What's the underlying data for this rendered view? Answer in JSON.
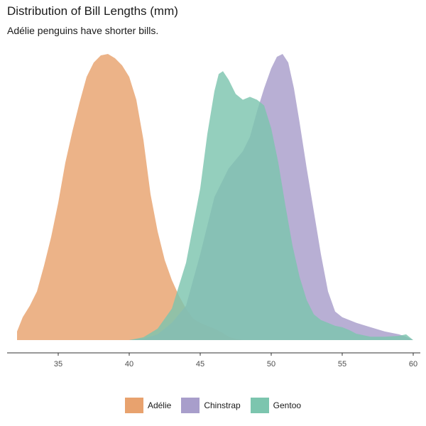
{
  "chart_data": {
    "type": "area",
    "title": "Distribution of Bill Lengths (mm)",
    "subtitle": "Adélie penguins have shorter bills.",
    "xlabel": "",
    "ylabel": "",
    "xlim": [
      31.5,
      60.5
    ],
    "ylim": [
      0,
      1
    ],
    "x_ticks": [
      35,
      40,
      45,
      50,
      55,
      60
    ],
    "grid": false,
    "legend_position": "bottom",
    "series": [
      {
        "name": "Adélie",
        "color": "#E8A26E",
        "points": [
          [
            32.1,
            0.03
          ],
          [
            32.5,
            0.08
          ],
          [
            33,
            0.12
          ],
          [
            33.5,
            0.17
          ],
          [
            34,
            0.26
          ],
          [
            34.5,
            0.36
          ],
          [
            35,
            0.48
          ],
          [
            35.5,
            0.62
          ],
          [
            36,
            0.73
          ],
          [
            36.5,
            0.83
          ],
          [
            37,
            0.92
          ],
          [
            37.5,
            0.97
          ],
          [
            38,
            0.995
          ],
          [
            38.5,
            1.0
          ],
          [
            39,
            0.985
          ],
          [
            39.5,
            0.96
          ],
          [
            40,
            0.92
          ],
          [
            40.5,
            0.84
          ],
          [
            41,
            0.7
          ],
          [
            41.5,
            0.51
          ],
          [
            42,
            0.38
          ],
          [
            42.5,
            0.28
          ],
          [
            43,
            0.21
          ],
          [
            43.5,
            0.155
          ],
          [
            44,
            0.11
          ],
          [
            44.5,
            0.075
          ],
          [
            45,
            0.06
          ],
          [
            45.5,
            0.05
          ],
          [
            46,
            0.04
          ],
          [
            46.5,
            0.028
          ],
          [
            47,
            0.012
          ],
          [
            47.5,
            0.004
          ],
          [
            48,
            0
          ]
        ]
      },
      {
        "name": "Chinstrap",
        "color": "#A89ECB",
        "points": [
          [
            40,
            0
          ],
          [
            41,
            0.005
          ],
          [
            42,
            0.02
          ],
          [
            43,
            0.06
          ],
          [
            44,
            0.12
          ],
          [
            45,
            0.3
          ],
          [
            46,
            0.5
          ],
          [
            47,
            0.6
          ],
          [
            48,
            0.66
          ],
          [
            48.5,
            0.71
          ],
          [
            49,
            0.8
          ],
          [
            49.5,
            0.88
          ],
          [
            50,
            0.95
          ],
          [
            50.4,
            0.99
          ],
          [
            50.8,
            1.0
          ],
          [
            51.2,
            0.97
          ],
          [
            51.6,
            0.88
          ],
          [
            52,
            0.76
          ],
          [
            52.5,
            0.6
          ],
          [
            53,
            0.45
          ],
          [
            53.5,
            0.3
          ],
          [
            54,
            0.17
          ],
          [
            54.5,
            0.1
          ],
          [
            55,
            0.08
          ],
          [
            55.5,
            0.07
          ],
          [
            56,
            0.06
          ],
          [
            57,
            0.045
          ],
          [
            58,
            0.03
          ],
          [
            59,
            0.02
          ],
          [
            59.5,
            0.012
          ],
          [
            60,
            0
          ]
        ]
      },
      {
        "name": "Gentoo",
        "color": "#7CC5AE",
        "points": [
          [
            40,
            0
          ],
          [
            41,
            0.01
          ],
          [
            42,
            0.04
          ],
          [
            43,
            0.11
          ],
          [
            44,
            0.27
          ],
          [
            45,
            0.53
          ],
          [
            45.5,
            0.72
          ],
          [
            46,
            0.87
          ],
          [
            46.3,
            0.93
          ],
          [
            46.6,
            0.94
          ],
          [
            47,
            0.91
          ],
          [
            47.5,
            0.86
          ],
          [
            48,
            0.84
          ],
          [
            48.5,
            0.85
          ],
          [
            49,
            0.84
          ],
          [
            49.5,
            0.82
          ],
          [
            50,
            0.74
          ],
          [
            50.5,
            0.62
          ],
          [
            51,
            0.47
          ],
          [
            51.5,
            0.33
          ],
          [
            52,
            0.22
          ],
          [
            52.5,
            0.14
          ],
          [
            53,
            0.09
          ],
          [
            53.5,
            0.07
          ],
          [
            54,
            0.06
          ],
          [
            54.5,
            0.05
          ],
          [
            55,
            0.045
          ],
          [
            55.5,
            0.035
          ],
          [
            56,
            0.022
          ],
          [
            57,
            0.012
          ],
          [
            58,
            0.012
          ],
          [
            59,
            0.015
          ],
          [
            59.5,
            0.02
          ],
          [
            60,
            0
          ]
        ]
      }
    ]
  }
}
